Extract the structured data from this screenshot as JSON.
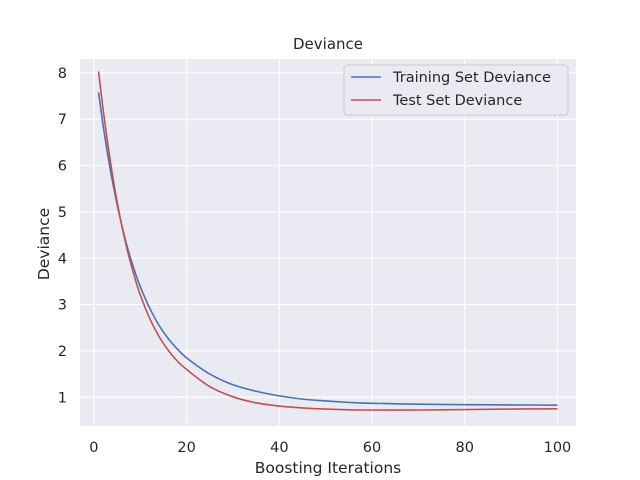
{
  "chart_data": {
    "type": "line",
    "title": "Deviance",
    "xlabel": "Boosting Iterations",
    "ylabel": "Deviance",
    "xlim": [
      -3,
      104
    ],
    "ylim": [
      0.38,
      8.3
    ],
    "xticks": [
      0,
      20,
      40,
      60,
      80,
      100
    ],
    "yticks": [
      1,
      2,
      3,
      4,
      5,
      6,
      7,
      8
    ],
    "grid": true,
    "legend_position": "top-right",
    "background": "#eaeaf2",
    "series": [
      {
        "name": "Training Set Deviance",
        "color": "#4c72b0",
        "x": [
          1,
          2,
          3,
          4,
          5,
          6,
          7,
          8,
          9,
          10,
          12,
          14,
          16,
          18,
          20,
          25,
          30,
          35,
          40,
          45,
          50,
          55,
          60,
          70,
          80,
          90,
          100
        ],
        "y": [
          7.58,
          6.86,
          6.22,
          5.66,
          5.16,
          4.72,
          4.32,
          3.97,
          3.66,
          3.39,
          2.93,
          2.56,
          2.27,
          2.04,
          1.85,
          1.5,
          1.27,
          1.13,
          1.03,
          0.96,
          0.92,
          0.89,
          0.87,
          0.85,
          0.84,
          0.835,
          0.83
        ]
      },
      {
        "name": "Test Set Deviance",
        "color": "#c44e52",
        "x": [
          1,
          2,
          3,
          4,
          5,
          6,
          7,
          8,
          9,
          10,
          12,
          14,
          16,
          18,
          20,
          25,
          30,
          35,
          40,
          45,
          50,
          55,
          60,
          70,
          80,
          90,
          100
        ],
        "y": [
          8.03,
          7.2,
          6.46,
          5.8,
          5.22,
          4.71,
          4.26,
          3.87,
          3.52,
          3.21,
          2.71,
          2.32,
          2.02,
          1.78,
          1.6,
          1.23,
          1.01,
          0.88,
          0.81,
          0.77,
          0.745,
          0.73,
          0.725,
          0.725,
          0.735,
          0.745,
          0.75
        ]
      }
    ]
  }
}
